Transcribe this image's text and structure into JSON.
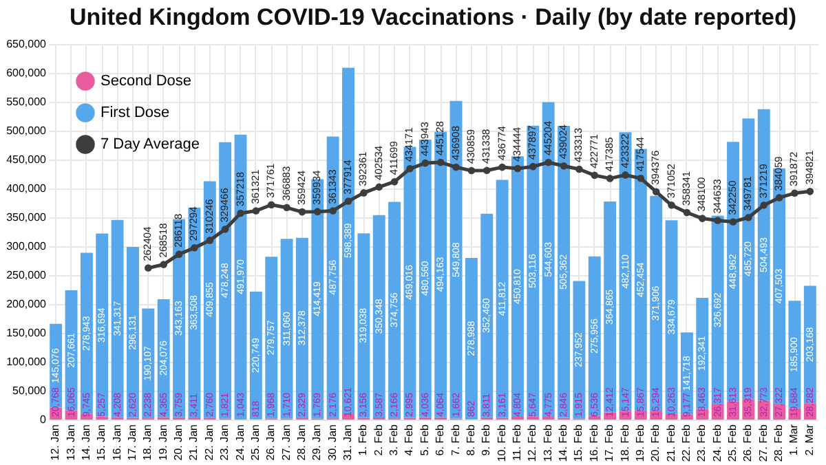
{
  "chart_data": {
    "type": "bar",
    "title": "United Kingdom COVID-19 Vaccinations · Daily (by date reported)",
    "stacked": true,
    "grid": true,
    "legend": "top left",
    "categories": [
      "12. Jan",
      "13. Jan",
      "14. Jan",
      "15. Jan",
      "16. Jan",
      "17. Jan",
      "18. Jan",
      "19. Jan",
      "20. Jan",
      "21. Jan",
      "22. Jan",
      "23. Jan",
      "24. Jan",
      "25. Jan",
      "26. Jan",
      "27. Jan",
      "28. Jan",
      "29. Jan",
      "30. Jan",
      "31. Jan",
      "1. Feb",
      "2. Feb",
      "3. Feb",
      "4. Feb",
      "5. Feb",
      "6. Feb",
      "7. Feb",
      "8. Feb",
      "9. Feb",
      "10. Feb",
      "11. Feb",
      "12. Feb",
      "13. Feb",
      "14. Feb",
      "15. Feb",
      "16. Feb",
      "17. Feb",
      "18. Feb",
      "19. Feb",
      "20. Feb",
      "21. Feb",
      "22. Feb",
      "23. Feb",
      "24. Feb",
      "25. Feb",
      "26. Feb",
      "27. Feb",
      "28. Feb",
      "1. Mar",
      "2. Mar"
    ],
    "ylim": [
      0,
      650000
    ],
    "yticks": [
      {
        "value": 0,
        "label": "0"
      },
      {
        "value": 50000,
        "label": "50,000"
      },
      {
        "value": 100000,
        "label": "100,000"
      },
      {
        "value": 150000,
        "label": "150,000"
      },
      {
        "value": 200000,
        "label": "200,000"
      },
      {
        "value": 250000,
        "label": "250,000"
      },
      {
        "value": 300000,
        "label": "300,000"
      },
      {
        "value": 350000,
        "label": "350,000"
      },
      {
        "value": 400000,
        "label": "400,000"
      },
      {
        "value": 450000,
        "label": "450,000"
      },
      {
        "value": 500000,
        "label": "500,000"
      },
      {
        "value": 550000,
        "label": "550,000"
      },
      {
        "value": 600000,
        "label": "600,000"
      },
      {
        "value": 650000,
        "label": "650,000"
      }
    ],
    "series": [
      {
        "name": "Second Dose",
        "color": "#e95ca0",
        "values": [
          20768,
          16065,
          9745,
          5257,
          4208,
          2620,
          2238,
          4365,
          3759,
          3411,
          2760,
          1821,
          1043,
          818,
          1968,
          1710,
          2329,
          1769,
          2176,
          10621,
          3156,
          3587,
          2166,
          2995,
          4036,
          4064,
          1662,
          862,
          3811,
          3161,
          4804,
          5647,
          4775,
          2846,
          1915,
          6536,
          12412,
          15147,
          15867,
          15294,
          10263,
          9177,
          18463,
          26317,
          31613,
          35319,
          32773,
          27322,
          19684,
          28282
        ],
        "value_labels": [
          "20,768",
          "16,065",
          "9,745",
          "5,257",
          "4,208",
          "2,620",
          "2,238",
          "4,365",
          "3,759",
          "3,411",
          "2,760",
          "1,821",
          "1,043",
          "818",
          "1,968",
          "1,710",
          "2,329",
          "1,769",
          "2,176",
          "10,621",
          "3,156",
          "3,587",
          "2,166",
          "2,995",
          "4,036",
          "4,064",
          "1,662",
          "862",
          "3,811",
          "3,161",
          "4,804",
          "5,647",
          "4,775",
          "2,846",
          "1,915",
          "6,536",
          "12,412",
          "15,147",
          "15,867",
          "15,294",
          "10,263",
          "9,177",
          "18,463",
          "26,317",
          "31,613",
          "35,319",
          "32,773",
          "27,322",
          "19,684",
          "28,282"
        ]
      },
      {
        "name": "First Dose",
        "color": "#56a7eb",
        "values": [
          145076,
          207661,
          278943,
          316694,
          341317,
          296131,
          190107,
          204076,
          343163,
          363508,
          409855,
          478248,
          491970,
          220749,
          279757,
          311060,
          312378,
          414419,
          487756,
          598389,
          319038,
          350348,
          374756,
          469016,
          480560,
          494163,
          549808,
          278988,
          352460,
          411812,
          450810,
          503116,
          544603,
          505362,
          237952,
          275956,
          364865,
          482110,
          452454,
          371906,
          334679,
          141718,
          192341,
          326692,
          448962,
          485720,
          504493,
          407503,
          185900,
          203168
        ],
        "value_labels": [
          "145,076",
          "207,661",
          "278,943",
          "316,694",
          "341,317",
          "296,131",
          "190,107",
          "204,076",
          "343,163",
          "363,508",
          "409,855",
          "478,248",
          "491,970",
          "220,749",
          "279,757",
          "311,060",
          "312,378",
          "414,419",
          "487,756",
          "598,389",
          "319,038",
          "350,348",
          "374,756",
          "469,016",
          "480,560",
          "494,163",
          "549,808",
          "278,988",
          "352,460",
          "411,812",
          "450,810",
          "503,116",
          "544,603",
          "505,362",
          "237,952",
          "275,956",
          "364,865",
          "482,110",
          "452,454",
          "371,906",
          "334,679",
          "141,718",
          "192,341",
          "326,692",
          "448,962",
          "485,720",
          "504,493",
          "407,503",
          "185,900",
          "203,168"
        ]
      },
      {
        "name": "7 Day Average",
        "type": "line",
        "marker": "circle",
        "color": "#3d3d3d",
        "values": [
          null,
          null,
          null,
          null,
          null,
          null,
          262404,
          268518,
          286118,
          297294,
          310246,
          329466,
          357218,
          361321,
          371761,
          366883,
          359424,
          359934,
          361343,
          377914,
          392361,
          402534,
          411699,
          434171,
          443943,
          445128,
          436908,
          430859,
          431338,
          436774,
          434444,
          437897,
          445204,
          439024,
          433313,
          422771,
          417385,
          423322,
          417544,
          394376,
          371052,
          358341,
          348100,
          344633,
          342250,
          349781,
          371219,
          384059,
          391872,
          394821
        ],
        "value_labels": [
          null,
          null,
          null,
          null,
          null,
          null,
          "262404",
          "268518",
          "286118",
          "297294",
          "310246",
          "329466",
          "357218",
          "361321",
          "371761",
          "366883",
          "359424",
          "359934",
          "361343",
          "377914",
          "392361",
          "402534",
          "411699",
          "434171",
          "443943",
          "445128",
          "436908",
          "430859",
          "431338",
          "436774",
          "434444",
          "437897",
          "445204",
          "439024",
          "433313",
          "422771",
          "417385",
          "423322",
          "417544",
          "394376",
          "371052",
          "358341",
          "348100",
          "344633",
          "342250",
          "349781",
          "371219",
          "384059",
          "391872",
          "394821"
        ]
      }
    ]
  }
}
